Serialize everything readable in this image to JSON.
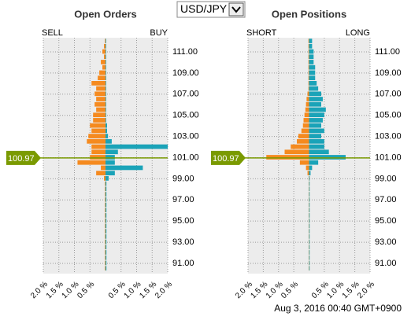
{
  "header": {
    "pair": "USD/JPY",
    "footnote": "Aug 3, 2016 00:40 GMT+0900"
  },
  "chart_data": [
    {
      "type": "bar",
      "orientation": "horizontal",
      "title": "Open Orders",
      "y": [
        112,
        111.5,
        111,
        110.5,
        110,
        109.5,
        109,
        108.5,
        108,
        107.5,
        107,
        106.5,
        106,
        105.5,
        105,
        104.5,
        104,
        103.5,
        103,
        102.5,
        102,
        101.5,
        101,
        100.5,
        100,
        99.5,
        99,
        98.5,
        98,
        97.5,
        97,
        96.5,
        96,
        95.5,
        95,
        94.5,
        94,
        93.5,
        93,
        92.5,
        92,
        91.5,
        91,
        90.5
      ],
      "series": [
        {
          "name": "SELL",
          "color": "#f58a1f",
          "values": [
            -0.02,
            -0.05,
            -0.1,
            -0.05,
            -0.15,
            -0.1,
            -0.2,
            -0.25,
            -0.45,
            -0.3,
            -0.35,
            -0.3,
            -0.35,
            -0.3,
            -0.4,
            -0.4,
            -0.5,
            -0.45,
            -0.55,
            -0.6,
            -0.45,
            -0.45,
            -0.5,
            -0.9,
            -0.15,
            -0.3,
            -0.05,
            -0.02,
            -0.02,
            -0.02,
            -0.02,
            -0.02,
            -0.02,
            -0.02,
            -0.02,
            -0.02,
            -0.02,
            -0.02,
            -0.02,
            -0.02,
            -0.02,
            -0.02,
            -0.02,
            -0.02
          ]
        },
        {
          "name": "BUY",
          "color": "#1aa3b8",
          "values": [
            0.02,
            0.02,
            0.02,
            0.02,
            0.02,
            0.02,
            0.02,
            0.02,
            0.02,
            0.02,
            0.02,
            0.02,
            0.02,
            0.02,
            0.02,
            0.02,
            0.05,
            0.05,
            0.08,
            0.2,
            2.0,
            0.4,
            0.3,
            0.3,
            1.2,
            0.3,
            0.1,
            0.03,
            0.03,
            0.03,
            0.03,
            0.03,
            0.03,
            0.03,
            0.03,
            0.03,
            0.03,
            0.03,
            0.03,
            0.03,
            0.03,
            0.03,
            0.03,
            0.03
          ]
        }
      ],
      "current_price": 100.97,
      "xlim": [
        -2,
        2
      ],
      "xticks": [
        {
          "value": -2,
          "label": "2.0 %"
        },
        {
          "value": -1.5,
          "label": "1.5 %"
        },
        {
          "value": -1,
          "label": "1.0 %"
        },
        {
          "value": -0.5,
          "label": "0.5 %"
        },
        {
          "value": 0.5,
          "label": "0.5 %"
        },
        {
          "value": 1,
          "label": "1.0 %"
        },
        {
          "value": 1.5,
          "label": "1.5 %"
        },
        {
          "value": 2,
          "label": "2.0 %"
        }
      ],
      "ylim": [
        90.03,
        112.34
      ],
      "yticks": [
        {
          "value": 91,
          "label": "91.00"
        },
        {
          "value": 93,
          "label": "93.00"
        },
        {
          "value": 95,
          "label": "95.00"
        },
        {
          "value": 97,
          "label": "97.00"
        },
        {
          "value": 99,
          "label": "99.00"
        },
        {
          "value": 101,
          "label": "101.00"
        },
        {
          "value": 103,
          "label": "103.00"
        },
        {
          "value": 105,
          "label": "105.00"
        },
        {
          "value": 107,
          "label": "107.00"
        },
        {
          "value": 109,
          "label": "109.00"
        },
        {
          "value": 111,
          "label": "111.00"
        }
      ],
      "grid": true
    },
    {
      "type": "bar",
      "orientation": "horizontal",
      "title": "Open Positions",
      "y": [
        112,
        111.5,
        111,
        110.5,
        110,
        109.5,
        109,
        108.5,
        108,
        107.5,
        107,
        106.5,
        106,
        105.5,
        105,
        104.5,
        104,
        103.5,
        103,
        102.5,
        102,
        101.5,
        101,
        100.5,
        100,
        99.5,
        99,
        98.5,
        98,
        97.5,
        97,
        96.5,
        96,
        95.5,
        95,
        94.5,
        94,
        93.5,
        93,
        92.5,
        92,
        91.5,
        91,
        90.5
      ],
      "series": [
        {
          "name": "SHORT",
          "color": "#f58a1f",
          "values": [
            -0.02,
            -0.02,
            -0.02,
            -0.02,
            -0.02,
            -0.02,
            -0.02,
            -0.02,
            -0.02,
            -0.02,
            -0.05,
            -0.08,
            -0.1,
            -0.12,
            -0.15,
            -0.18,
            -0.2,
            -0.25,
            -0.35,
            -0.4,
            -0.6,
            -0.8,
            -1.4,
            -0.3,
            -0.1,
            -0.05,
            -0.01,
            -0.01,
            -0.01,
            -0.01,
            -0.01,
            -0.01,
            -0.01,
            -0.01,
            -0.01,
            -0.01,
            -0.01,
            -0.01,
            -0.01,
            -0.01,
            -0.01,
            -0.01,
            -0.01,
            -0.01
          ]
        },
        {
          "name": "LONG",
          "color": "#1aa3b8",
          "values": [
            0.1,
            0.1,
            0.15,
            0.15,
            0.15,
            0.2,
            0.2,
            0.2,
            0.25,
            0.3,
            0.4,
            0.45,
            0.4,
            0.55,
            0.5,
            0.45,
            0.4,
            0.5,
            0.4,
            0.5,
            0.5,
            0.65,
            1.2,
            0.3,
            0.1,
            0.05,
            0.02,
            0.02,
            0.02,
            0.02,
            0.02,
            0.02,
            0.02,
            0.02,
            0.02,
            0.02,
            0.02,
            0.02,
            0.02,
            0.02,
            0.02,
            0.02,
            0.02,
            0.02
          ]
        }
      ],
      "current_price": 100.97,
      "xlim": [
        -2,
        2
      ],
      "xticks": [
        {
          "value": -2,
          "label": "2.0 %"
        },
        {
          "value": -1.5,
          "label": "1.5 %"
        },
        {
          "value": -1,
          "label": "1.0 %"
        },
        {
          "value": -0.5,
          "label": "0.5 %"
        },
        {
          "value": 0.5,
          "label": "0.5 %"
        },
        {
          "value": 1,
          "label": "1.0 %"
        },
        {
          "value": 1.5,
          "label": "1.5 %"
        },
        {
          "value": 2,
          "label": "2.0 %"
        }
      ],
      "ylim": [
        90.03,
        112.34
      ],
      "yticks": [
        {
          "value": 91,
          "label": "91.00"
        },
        {
          "value": 93,
          "label": "93.00"
        },
        {
          "value": 95,
          "label": "95.00"
        },
        {
          "value": 97,
          "label": "97.00"
        },
        {
          "value": 99,
          "label": "99.00"
        },
        {
          "value": 101,
          "label": "101.00"
        },
        {
          "value": 103,
          "label": "103.00"
        },
        {
          "value": 105,
          "label": "105.00"
        },
        {
          "value": 107,
          "label": "107.00"
        },
        {
          "value": 109,
          "label": "109.00"
        },
        {
          "value": 111,
          "label": "111.00"
        }
      ],
      "grid": true
    }
  ]
}
